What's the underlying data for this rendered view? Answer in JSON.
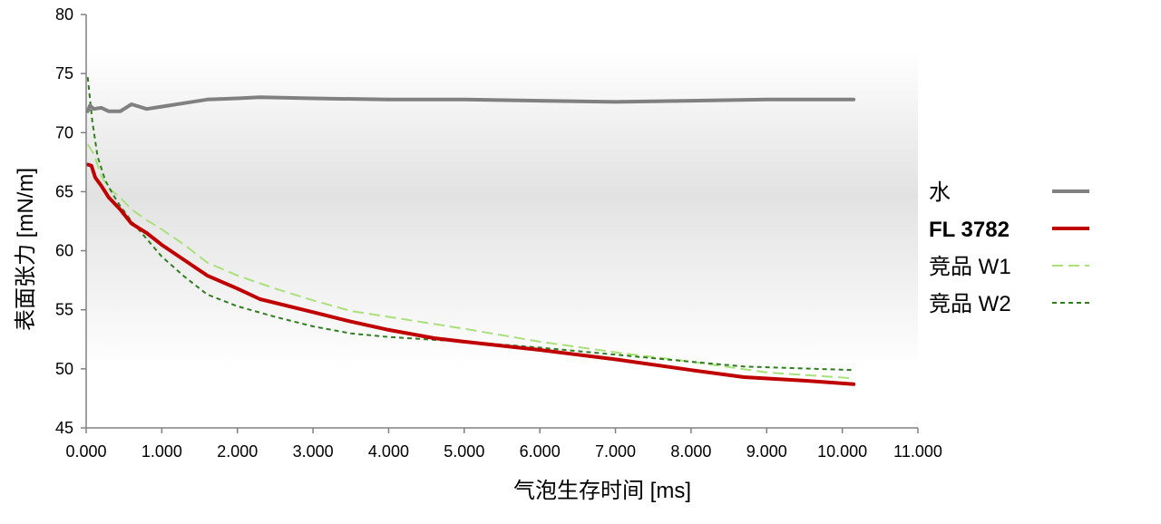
{
  "chart_data": {
    "type": "line",
    "xlabel": "气泡生存时间 [ms]",
    "ylabel": "表面张力 [mN/m]",
    "xlim": [
      0,
      11000
    ],
    "ylim": [
      45,
      80
    ],
    "xticks": [
      0,
      1000,
      2000,
      3000,
      4000,
      5000,
      6000,
      7000,
      8000,
      9000,
      10000,
      11000
    ],
    "xtick_labels": [
      "0.000",
      "1.000",
      "2.000",
      "3.000",
      "4.000",
      "5.000",
      "6.000",
      "7.000",
      "8.000",
      "9.000",
      "10.000",
      "11.000"
    ],
    "yticks": [
      45,
      50,
      55,
      60,
      65,
      70,
      75,
      80
    ],
    "ytick_labels": [
      "45",
      "50",
      "55",
      "60",
      "65",
      "70",
      "75",
      "80"
    ],
    "grid": false,
    "legend_position": "right",
    "series": [
      {
        "name": "水",
        "color": "#808080",
        "style": "solid",
        "bold_label": false,
        "x": [
          20,
          50,
          100,
          200,
          300,
          450,
          600,
          800,
          1000,
          1300,
          1600,
          2000,
          2300,
          3000,
          4000,
          5000,
          6000,
          7000,
          8000,
          9000,
          10150
        ],
        "y": [
          71.8,
          72.3,
          72.0,
          72.1,
          71.8,
          71.8,
          72.4,
          72.0,
          72.2,
          72.5,
          72.8,
          72.9,
          73.0,
          72.9,
          72.8,
          72.8,
          72.7,
          72.6,
          72.7,
          72.8,
          72.8
        ]
      },
      {
        "name": "FL 3782",
        "color": "#c00000",
        "style": "solid",
        "bold_label": true,
        "x": [
          20,
          70,
          120,
          200,
          300,
          450,
          600,
          800,
          1000,
          1300,
          1600,
          2000,
          2300,
          3000,
          3500,
          4000,
          4600,
          5000,
          6000,
          7000,
          8000,
          8700,
          9500,
          10150
        ],
        "y": [
          67.3,
          67.2,
          66.2,
          65.5,
          64.5,
          63.5,
          62.3,
          61.5,
          60.5,
          59.2,
          57.9,
          56.8,
          55.9,
          54.8,
          54.0,
          53.3,
          52.6,
          52.3,
          51.6,
          50.8,
          49.9,
          49.3,
          49.0,
          48.7
        ]
      },
      {
        "name": "竞品 W1",
        "color": "#a9e07a",
        "style": "dashed",
        "bold_label": false,
        "x": [
          20,
          100,
          200,
          300,
          450,
          600,
          800,
          1000,
          1300,
          1600,
          2000,
          2500,
          3000,
          3500,
          4000,
          5000,
          6000,
          7000,
          8000,
          9000,
          10150
        ],
        "y": [
          69.0,
          68.2,
          66.3,
          65.3,
          64.5,
          63.5,
          62.6,
          61.8,
          60.5,
          59.0,
          57.9,
          56.8,
          55.8,
          54.9,
          54.4,
          53.4,
          52.3,
          51.4,
          50.6,
          49.7,
          49.2
        ]
      },
      {
        "name": "竞品 W2",
        "color": "#2f7d1f",
        "style": "dotted",
        "bold_label": false,
        "x": [
          20,
          80,
          150,
          250,
          350,
          450,
          600,
          800,
          1000,
          1300,
          1600,
          2000,
          2500,
          3000,
          3500,
          4000,
          5000,
          6000,
          7000,
          8000,
          8700,
          10150
        ],
        "y": [
          74.7,
          71.0,
          68.0,
          66.0,
          64.8,
          63.8,
          62.5,
          61.0,
          59.5,
          57.8,
          56.3,
          55.3,
          54.4,
          53.6,
          53.0,
          52.7,
          52.3,
          51.8,
          51.2,
          50.6,
          50.2,
          49.9
        ]
      }
    ]
  }
}
